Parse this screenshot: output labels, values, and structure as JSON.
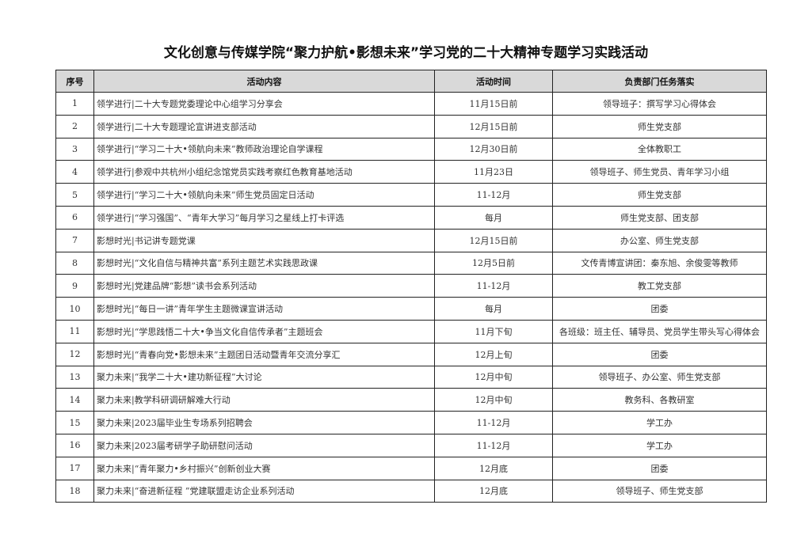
{
  "title": "文化创意与传媒学院“聚力护航•影想未来”学习党的二十大精神专题学习实践活动",
  "headers": [
    "序号",
    "活动内容",
    "活动时间",
    "负责部门任务落实"
  ],
  "rows": [
    {
      "no": "1",
      "content": "领学进行|二十大专题党委理论中心组学习分享会",
      "time": "11月15日前",
      "dept": "领导班子：撰写学习心得体会"
    },
    {
      "no": "2",
      "content": "领学进行|二十大专题理论宣讲进支部活动",
      "time": "12月15日前",
      "dept": "师生党支部"
    },
    {
      "no": "3",
      "content": "领学进行|“学习二十大•领航向未来”教师政治理论自学课程",
      "time": "12月30日前",
      "dept": "全体教职工"
    },
    {
      "no": "4",
      "content": "领学进行|参观中共杭州小组纪念馆党员实践考察红色教育基地活动",
      "time": "11月23日",
      "dept": "领导班子、师生党员、青年学习小组"
    },
    {
      "no": "5",
      "content": "领学进行|“学习二十大•领航向未来”师生党员固定日活动",
      "time": "11-12月",
      "dept": "师生党支部"
    },
    {
      "no": "6",
      "content": "领学进行|“学习强国”、“青年大学习”每月学习之星线上打卡评选",
      "time": "每月",
      "dept": "师生党支部、团支部"
    },
    {
      "no": "7",
      "content": "影想时光|书记讲专题党课",
      "time": "12月15日前",
      "dept": "办公室、师生党支部"
    },
    {
      "no": "8",
      "content": "影想时光|“文化自信与精神共富”系列主题艺术实践思政课",
      "time": "12月5日前",
      "dept": "文传青博宣讲团：秦东旭、余俊雯等教师"
    },
    {
      "no": "9",
      "content": "影想时光|党建品牌“影想”读书会系列活动",
      "time": "11-12月",
      "dept": "教工党支部"
    },
    {
      "no": "10",
      "content": "影想时光|“每日一讲”青年学生主题微课宣讲活动",
      "time": "每月",
      "dept": "团委"
    },
    {
      "no": "11",
      "content": "影想时光|“学思践悟二十大•争当文化自信传承者”主题班会",
      "time": "11月下旬",
      "dept": "各班级：班主任、辅导员、党员学生带头写心得体会"
    },
    {
      "no": "12",
      "content": "影想时光|“青春向党•影想未来”主题团日活动暨青年交流分享汇",
      "time": "12月上旬",
      "dept": "团委"
    },
    {
      "no": "13",
      "content": "聚力未来|“我学二十大•建功新征程”大讨论",
      "time": "12月中旬",
      "dept": "领导班子、办公室、师生党支部"
    },
    {
      "no": "14",
      "content": "聚力未来|教学科研调研解难大行动",
      "time": "12月中旬",
      "dept": "教务科、各教研室"
    },
    {
      "no": "15",
      "content": "聚力未来|2023届毕业生专场系列招聘会",
      "time": "11-12月",
      "dept": "学工办"
    },
    {
      "no": "16",
      "content": "聚力未来|2023届考研学子助研慰问活动",
      "time": "11-12月",
      "dept": "学工办"
    },
    {
      "no": "17",
      "content": "聚力未来|“青年聚力•乡村振兴”创新创业大赛",
      "time": "12月底",
      "dept": "团委"
    },
    {
      "no": "18",
      "content": "聚力未来|“奋进新征程 ”党建联盟走访企业系列活动",
      "time": "12月底",
      "dept": "领导班子、师生党支部"
    }
  ]
}
